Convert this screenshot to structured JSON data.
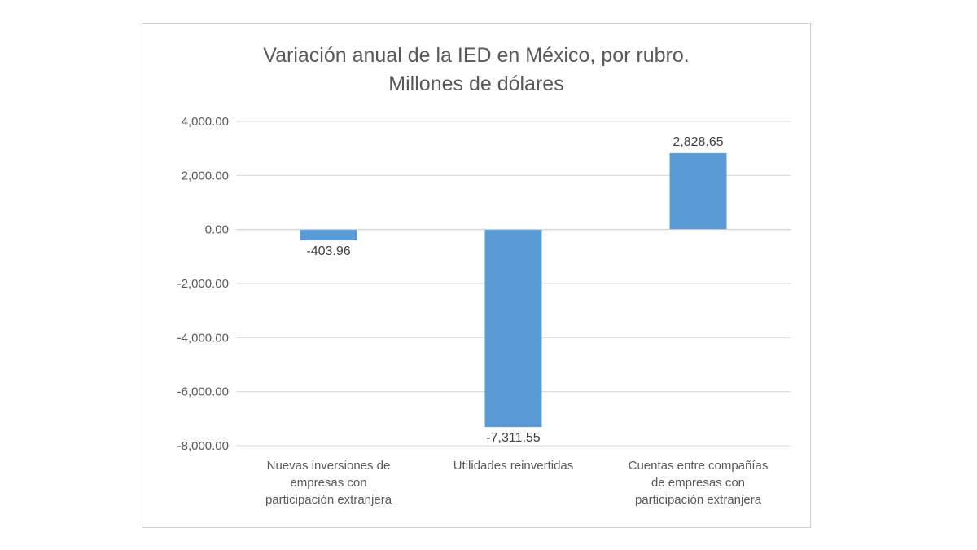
{
  "chart_data": {
    "type": "bar",
    "title": [
      "Variación anual de la IED en México, por rubro.",
      "Millones de dólares"
    ],
    "categories": [
      [
        "Nuevas inversiones de",
        "empresas con",
        "participación extranjera"
      ],
      [
        "Utilidades reinvertidas"
      ],
      [
        "Cuentas entre compañías",
        "de empresas con",
        "participación extranjera"
      ]
    ],
    "values": [
      -403.96,
      -7311.55,
      2828.65
    ],
    "data_labels": [
      "-403.96",
      "-7,311.55",
      "2,828.65"
    ],
    "ylim": [
      -8000,
      4000
    ],
    "yticks": [
      4000,
      2000,
      0,
      -2000,
      -4000,
      -6000,
      -8000
    ],
    "ytick_labels": [
      "4,000.00",
      "2,000.00",
      "0.00",
      "-2,000.00",
      "-4,000.00",
      "-6,000.00",
      "-8,000.00"
    ],
    "grid": true,
    "bar_color": "#5b9bd5"
  }
}
